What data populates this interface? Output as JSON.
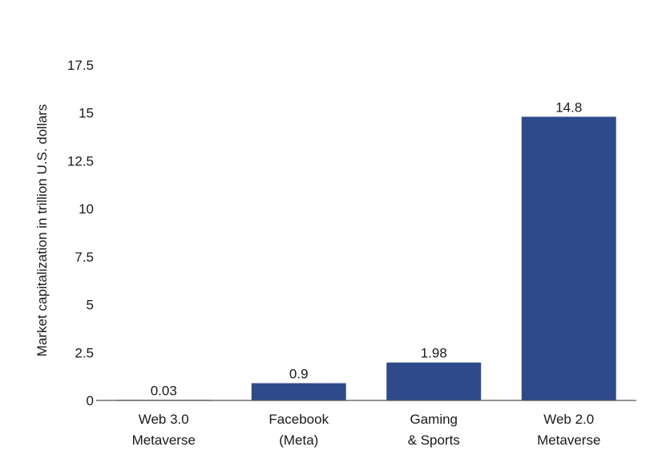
{
  "chart_data": {
    "type": "bar",
    "categories": [
      [
        "Web 3.0",
        "Metaverse"
      ],
      [
        "Facebook",
        "(Meta)"
      ],
      [
        "Gaming",
        "& Sports"
      ],
      [
        "Web 2.0",
        "Metaverse"
      ]
    ],
    "values": [
      0.03,
      0.9,
      1.98,
      14.8
    ],
    "value_labels": [
      "0.03",
      "0.9",
      "1.98",
      "14.8"
    ],
    "ylabel": "Market capitalization in trillion U.S. dollars",
    "ylim": [
      0,
      17.5
    ],
    "yticks": [
      0,
      2.5,
      5,
      7.5,
      10,
      12.5,
      15,
      17.5
    ],
    "ytick_labels": [
      "0",
      "2.5",
      "5",
      "7.5",
      "10",
      "12.5",
      "15",
      "17.5"
    ],
    "grid": false,
    "bar_color": "#2e4a8b"
  }
}
